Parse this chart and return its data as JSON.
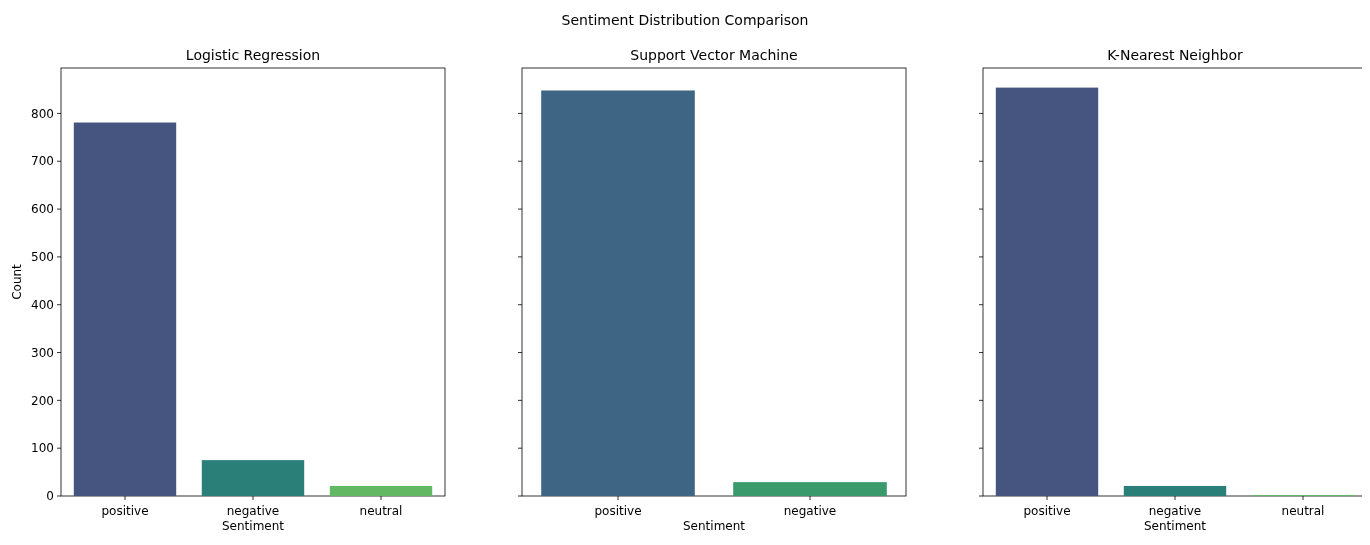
{
  "chart_data": [
    {
      "type": "bar",
      "title": "Logistic Regression",
      "xlabel": "Sentiment",
      "ylabel": "Count",
      "annotations": [
        "Sentiment Distribution Comparison"
      ],
      "categories": [
        "positive",
        "negative",
        "neutral"
      ],
      "values": [
        781,
        75,
        21
      ],
      "colors": [
        "#45557f",
        "#2a8079",
        "#62b863"
      ],
      "ylim": [
        0,
        895
      ],
      "yticks": [
        0,
        100,
        200,
        300,
        400,
        500,
        600,
        700,
        800
      ]
    },
    {
      "type": "bar",
      "title": "Support Vector Machine",
      "xlabel": "Sentiment",
      "categories": [
        "positive",
        "negative"
      ],
      "values": [
        848,
        29
      ],
      "colors": [
        "#3f6584",
        "#3a9a6c"
      ],
      "ylim": [
        0,
        895
      ],
      "yticks": [
        0,
        100,
        200,
        300,
        400,
        500,
        600,
        700,
        800
      ],
      "tick_labels": "x"
    },
    {
      "type": "bar",
      "title": "K-Nearest Neighbor",
      "xlabel": "Sentiment",
      "categories": [
        "positive",
        "negative",
        "neutral"
      ],
      "values": [
        854,
        21,
        2
      ],
      "colors": [
        "#45557f",
        "#2a8079",
        "#62b863"
      ],
      "ylim": [
        0,
        895
      ],
      "yticks": [
        0,
        100,
        200,
        300,
        400,
        500,
        600,
        700,
        800
      ],
      "tick_labels": "x"
    }
  ]
}
